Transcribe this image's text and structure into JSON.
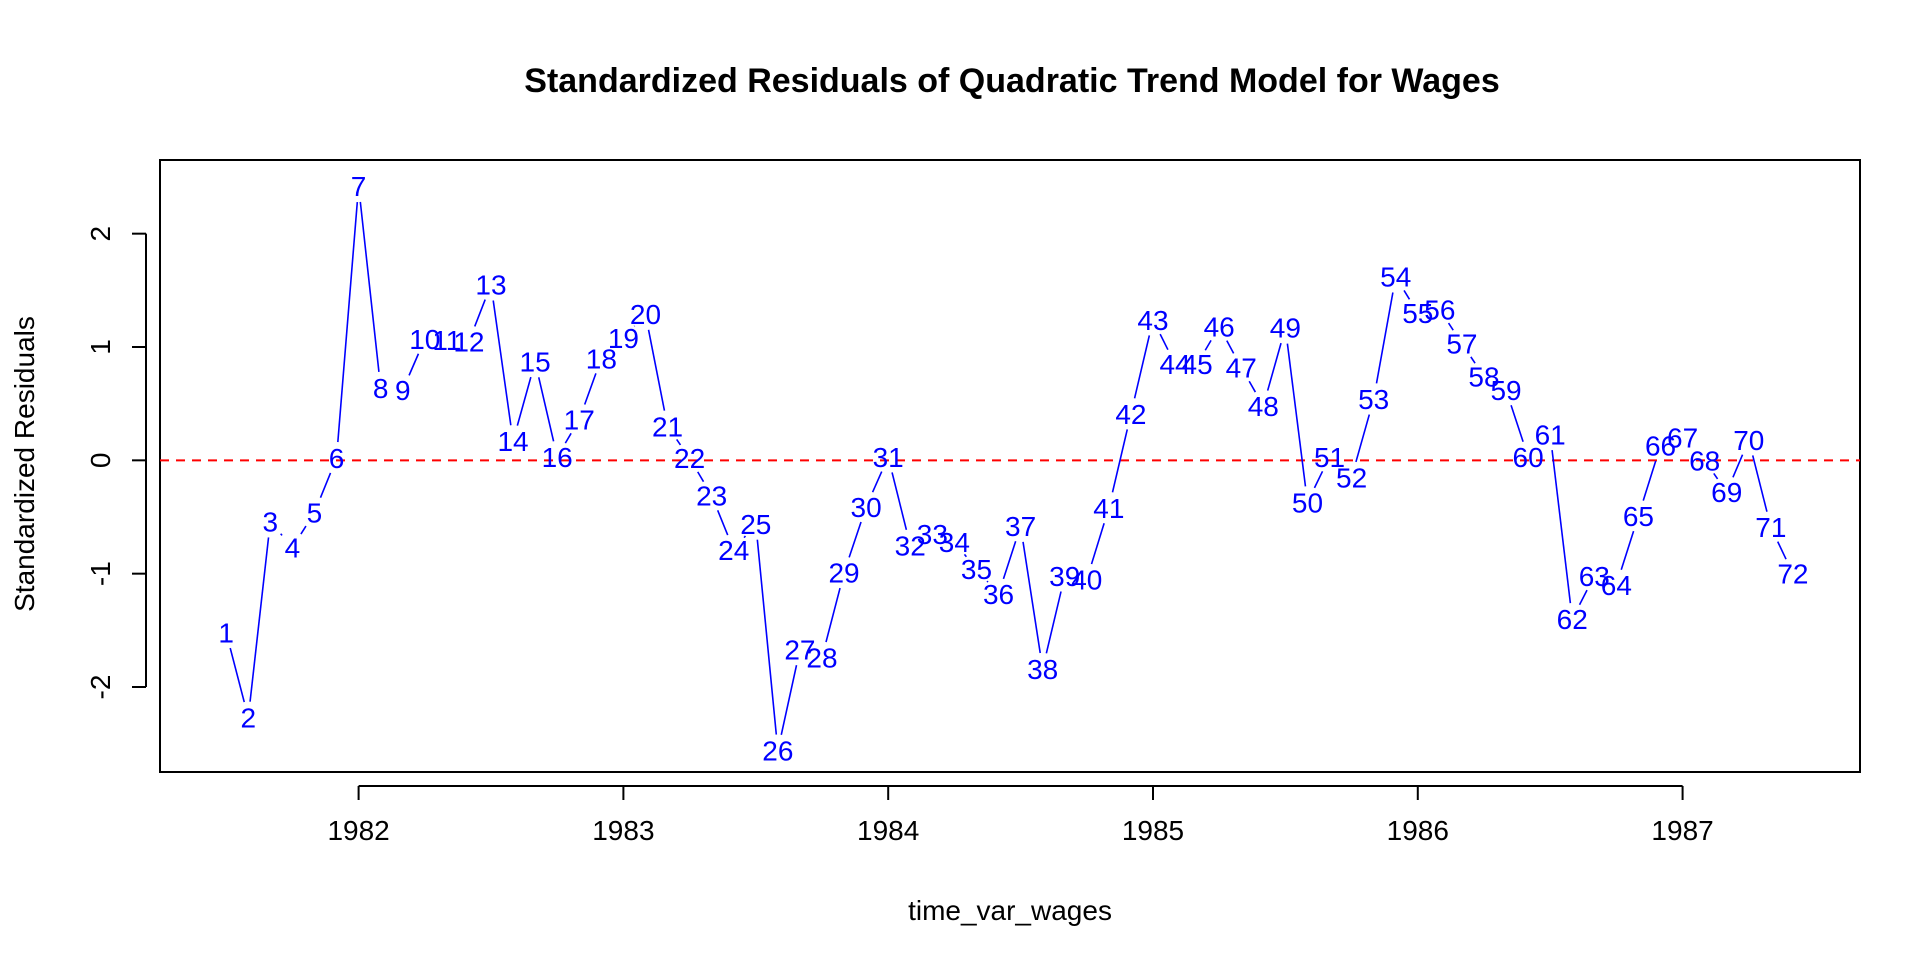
{
  "colors": {
    "series": "#0000ff",
    "reference_line": "#ff0000",
    "axes": "#000000",
    "background": "#ffffff"
  },
  "chart_data": {
    "type": "line",
    "title": "Standardized Residuals of Quadratic Trend Model for Wages",
    "xlabel": "time_var_wages",
    "ylabel": "Standardized Residuals",
    "xlim": [
      1981.25,
      1987.67
    ],
    "ylim": [
      -2.75,
      2.65
    ],
    "x_ticks": [
      1982,
      1983,
      1984,
      1985,
      1986,
      1987
    ],
    "x_tick_labels": [
      "1982",
      "1983",
      "1984",
      "1985",
      "1986",
      "1987"
    ],
    "y_ticks": [
      -2,
      -1,
      0,
      1,
      2
    ],
    "y_tick_labels": [
      "-2",
      "-1",
      "0",
      "1",
      "2"
    ],
    "reference_line": {
      "y": 0,
      "style": "dashed",
      "color": "red"
    },
    "grid": false,
    "marker_type": "index_labels",
    "series": [
      {
        "x_start": 1981.5,
        "x_step": 0.0833333,
        "labels": [
          "1",
          "2",
          "3",
          "4",
          "5",
          "6",
          "7",
          "8",
          "9",
          "10",
          "11",
          "12",
          "13",
          "14",
          "15",
          "16",
          "17",
          "18",
          "19",
          "20",
          "21",
          "22",
          "23",
          "24",
          "25",
          "26",
          "27",
          "28",
          "29",
          "30",
          "31",
          "32",
          "33",
          "34",
          "35",
          "36",
          "37",
          "38",
          "39",
          "40",
          "41",
          "42",
          "43",
          "44",
          "45",
          "46",
          "47",
          "48",
          "49",
          "50",
          "51",
          "52",
          "53",
          "54",
          "55",
          "56",
          "57",
          "58",
          "59",
          "60",
          "61",
          "62",
          "63",
          "64",
          "65",
          "66",
          "67",
          "68",
          "69",
          "70",
          "71",
          "72"
        ],
        "values": [
          -1.52,
          -2.27,
          -0.54,
          -0.77,
          -0.46,
          0.02,
          2.42,
          0.64,
          0.62,
          1.07,
          1.06,
          1.05,
          1.55,
          0.17,
          0.87,
          0.03,
          0.36,
          0.9,
          1.08,
          1.29,
          0.3,
          0.02,
          -0.31,
          -0.79,
          -0.56,
          -2.56,
          -1.67,
          -1.74,
          -0.99,
          -0.41,
          0.03,
          -0.75,
          -0.65,
          -0.72,
          -0.96,
          -1.18,
          -0.58,
          -1.84,
          -1.02,
          -1.05,
          -0.42,
          0.41,
          1.24,
          0.85,
          0.85,
          1.18,
          0.82,
          0.48,
          1.17,
          -0.37,
          0.03,
          -0.15,
          0.54,
          1.62,
          1.3,
          1.33,
          1.03,
          0.74,
          0.62,
          0.03,
          0.23,
          -1.4,
          -1.02,
          -1.1,
          -0.49,
          0.13,
          0.2,
          0.0,
          -0.28,
          0.18,
          -0.59,
          -1.0
        ]
      }
    ]
  }
}
